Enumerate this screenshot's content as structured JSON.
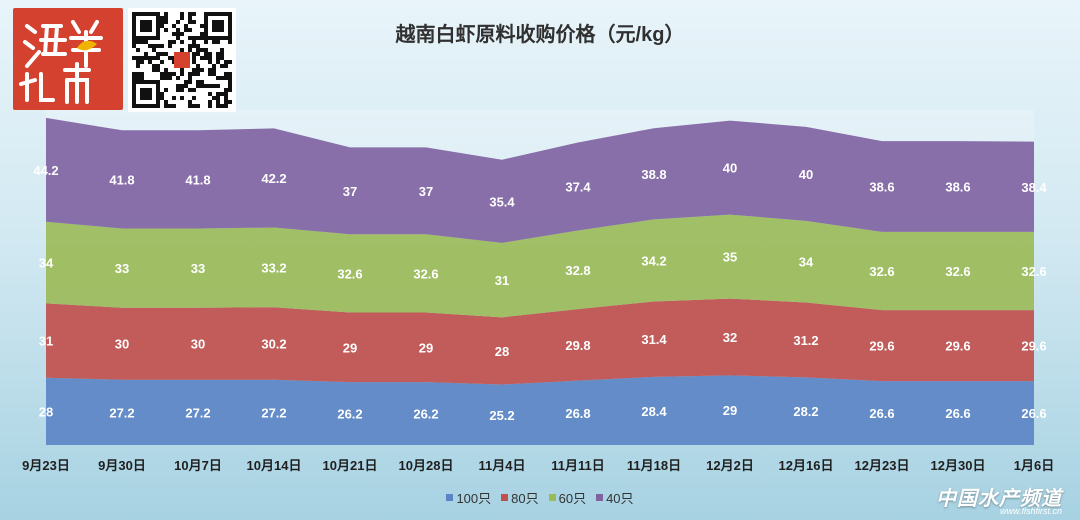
{
  "logo": {
    "name": "haiyang-zhinan-logo",
    "text": "海洋指南"
  },
  "qr": {
    "name": "qr-code"
  },
  "brand": {
    "name": "中国水产频道",
    "url": "www.fishfirst.cn"
  },
  "chart_data": {
    "type": "area",
    "stacked": true,
    "title": "越南白虾原料收购价格（元/kg）",
    "xlabel": "",
    "ylabel": "",
    "categories": [
      "9月23日",
      "9月30日",
      "10月7日",
      "10月14日",
      "10月21日",
      "10月28日",
      "11月4日",
      "11月11日",
      "11月18日",
      "12月2日",
      "12月16日",
      "12月23日",
      "12月30日",
      "1月6日"
    ],
    "series": [
      {
        "name": "100只",
        "color": "#5b84c4",
        "values": [
          28,
          27.2,
          27.2,
          27.2,
          26.2,
          26.2,
          25.2,
          26.8,
          28.4,
          29,
          28.2,
          26.6,
          26.6,
          26.6
        ]
      },
      {
        "name": "80只",
        "color": "#c0504d",
        "values": [
          31,
          30,
          30,
          30.2,
          29,
          29,
          28,
          29.8,
          31.4,
          32,
          31.2,
          29.6,
          29.6,
          29.6
        ]
      },
      {
        "name": "60只",
        "color": "#9bbb59",
        "values": [
          34,
          33,
          33,
          33.2,
          32.6,
          32.6,
          31,
          32.8,
          34.2,
          35,
          34,
          32.6,
          32.6,
          32.6
        ]
      },
      {
        "name": "40只",
        "color": "#8064a2",
        "values": [
          44.2,
          41.8,
          41.8,
          42.2,
          37,
          37,
          35.4,
          37.4,
          38.8,
          40,
          40,
          38.6,
          38.6,
          38.4
        ]
      }
    ],
    "legend_position": "bottom",
    "grid": true
  }
}
